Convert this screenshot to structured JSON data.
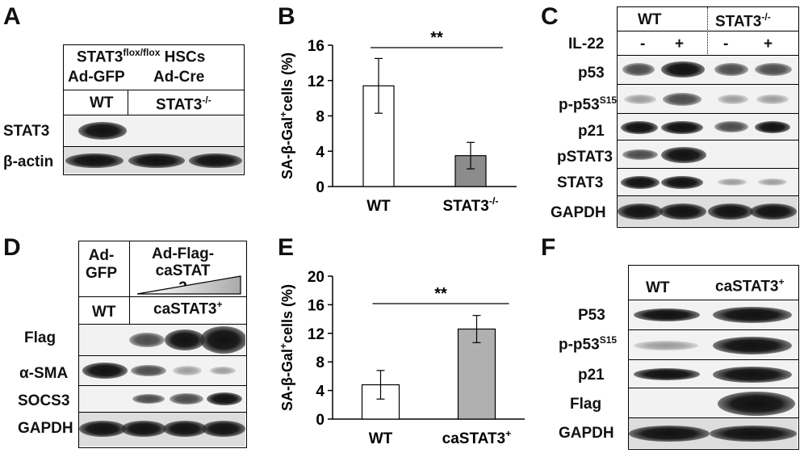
{
  "panels": {
    "A": {
      "label": "A",
      "title_line1_pre": "STAT3",
      "title_line1_sup": "flox/flox",
      "title_line1_post": " HSCs",
      "col1_top": "Ad-GFP",
      "col2_top": "Ad-Cre",
      "col1_geno": "WT",
      "col2_geno_pre": "STAT3",
      "col2_geno_sup": "-/-",
      "rows": [
        "STAT3",
        "β-actin"
      ]
    },
    "B": {
      "label": "B"
    },
    "C": {
      "label": "C",
      "wt": "WT",
      "ko_pre": "STAT3",
      "ko_sup": "-/-",
      "il22": "IL-22",
      "treatments": [
        "-",
        "+",
        "-",
        "+"
      ],
      "rows": [
        "p53",
        "p-p53",
        "p21",
        "pSTAT3",
        "STAT3",
        "GAPDH"
      ],
      "pp53_sup": "S15"
    },
    "D": {
      "label": "D",
      "col1_top": "Ad-\nGFP",
      "col2_top": "Ad-Flag-\ncaSTAT\n3",
      "col1_geno": "WT",
      "col2_geno": "caSTAT3",
      "col2_geno_sup": "+",
      "rows": [
        "Flag",
        "α-SMA",
        "SOCS3",
        "GAPDH"
      ]
    },
    "E": {
      "label": "E"
    },
    "F": {
      "label": "F",
      "col1": "WT",
      "col2": "caSTAT3",
      "col2_sup": "+",
      "rows": [
        "P53",
        "p-p53",
        "p21",
        "Flag",
        "GAPDH"
      ],
      "pp53_sup": "S15"
    }
  },
  "chart_data": [
    {
      "type": "bar",
      "panel": "B",
      "categories": [
        "WT",
        "STAT3-/-"
      ],
      "values": [
        11.4,
        3.5
      ],
      "errors": [
        3.1,
        1.5
      ],
      "ylabel": "SA-β-Gal+cells (%)",
      "yticks": [
        0,
        4,
        8,
        12,
        16
      ],
      "ylim": [
        0,
        16
      ],
      "significance": "**",
      "colors": [
        "#ffffff",
        "#8c8c8c"
      ]
    },
    {
      "type": "bar",
      "panel": "E",
      "categories": [
        "WT",
        "caSTAT3+"
      ],
      "values": [
        4.8,
        12.6
      ],
      "errors": [
        2.0,
        1.9
      ],
      "ylabel": "SA-β-Gal+cells (%)",
      "yticks": [
        0,
        4,
        8,
        12,
        16,
        20
      ],
      "ylim": [
        0,
        20
      ],
      "significance": "**",
      "colors": [
        "#ffffff",
        "#b0b0b0"
      ]
    }
  ]
}
